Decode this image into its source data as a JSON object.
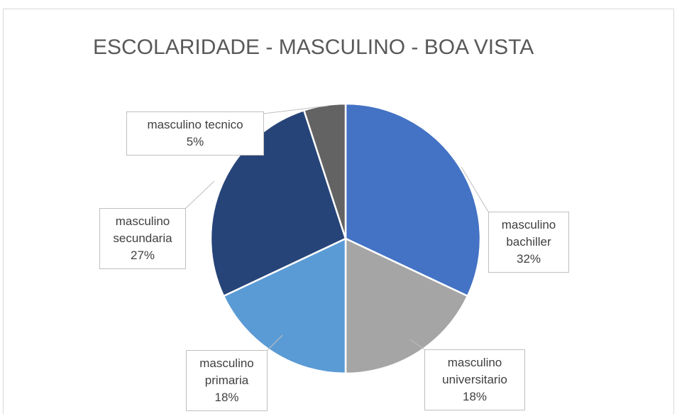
{
  "chart_data": {
    "type": "pie",
    "title": "ESCOLARIDADE - MASCULINO - BOA VISTA",
    "categories": [
      "masculino bachiller",
      "masculino universitario",
      "masculino primaria",
      "masculino secundaria",
      "masculino tecnico"
    ],
    "values": [
      32,
      18,
      18,
      27,
      5
    ],
    "value_labels": [
      "32%",
      "18%",
      "18%",
      "27%",
      "5%"
    ],
    "colors": [
      "#4472c4",
      "#a5a5a5",
      "#5b9bd5",
      "#264478",
      "#636363"
    ]
  }
}
